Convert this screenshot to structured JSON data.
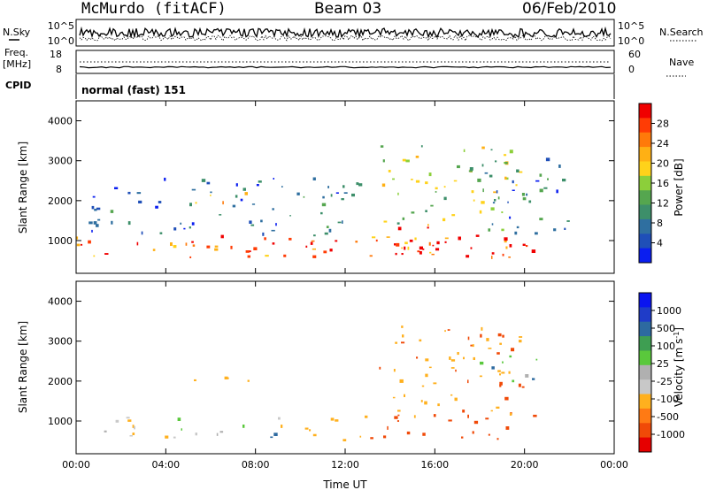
{
  "header": {
    "title": "McMurdo (fitACF)",
    "beam": "Beam 03",
    "date": "06/Feb/2010"
  },
  "status_panels": {
    "nsky_label": "N.Sky",
    "nsearch_label": "N.Search",
    "noise_ticks": [
      "10^5",
      "10^0"
    ],
    "freq_label_1": "Freq.",
    "freq_label_2": "[MHz]",
    "freq_ticks": [
      "18",
      "8"
    ],
    "nave_label": "Nave",
    "nave_ticks": [
      "60",
      "0"
    ],
    "cpid_label": "CPID",
    "cpid_value": "normal (fast) 151"
  },
  "colors": {
    "power_scale": [
      "#0a1ef0",
      "#1f4fb8",
      "#2f6fa0",
      "#3d8f6a",
      "#55a64f",
      "#8ccf3a",
      "#ffd21a",
      "#ffb014",
      "#ff7a0a",
      "#ff3c05",
      "#f00000"
    ],
    "velocity_scale": [
      "#e60000",
      "#f04a08",
      "#ff7a14",
      "#ffb01e",
      "#c8c8c8",
      "#b0b0b0",
      "#5ac83c",
      "#3e9e52",
      "#2d6aa0",
      "#1f3cc8",
      "#0a14f0"
    ]
  },
  "chart_data": [
    {
      "type": "heatmap",
      "panel": "power",
      "ylabel": "Slant Range [km]",
      "xlim": [
        "00:00",
        "24:00"
      ],
      "ylim": [
        180,
        4500
      ],
      "yticks": [
        "1000",
        "2000",
        "3000",
        "4000"
      ],
      "xticks": [
        "00:00",
        "04:00",
        "08:00",
        "12:00",
        "16:00",
        "20:00",
        "00:00"
      ],
      "colorbar": {
        "label": "Power [dB]",
        "ticks": [
          "28",
          "24",
          "20",
          "16",
          "12",
          "8",
          "4"
        ],
        "range": [
          0,
          30
        ]
      },
      "regions": [
        {
          "t0": 0.0,
          "t1": 20.7,
          "r0": 550,
          "r1": 1150,
          "value": 24,
          "description": "main ionospheric scatter band"
        },
        {
          "t0": 5.0,
          "t1": 20.5,
          "r0": 600,
          "r1": 1000,
          "value": 28
        },
        {
          "t0": 13.3,
          "t1": 15.8,
          "r0": 650,
          "r1": 1450,
          "value": 26
        },
        {
          "t0": 13.5,
          "t1": 20.0,
          "r0": 1100,
          "r1": 3400,
          "value": 16
        },
        {
          "t0": 5.0,
          "t1": 8.5,
          "r0": 1950,
          "r1": 2250,
          "value": 18
        },
        {
          "t0": 18.0,
          "t1": 22.0,
          "r0": 1200,
          "r1": 3200,
          "value": 8
        },
        {
          "t0": 0.3,
          "t1": 13.0,
          "r0": 1150,
          "r1": 2600,
          "value": 6
        }
      ]
    },
    {
      "type": "heatmap",
      "panel": "velocity",
      "ylabel": "Slant Range [km]",
      "xlabel": "Time UT",
      "xlim": [
        "00:00",
        "24:00"
      ],
      "ylim": [
        180,
        4500
      ],
      "yticks": [
        "1000",
        "2000",
        "3000",
        "4000"
      ],
      "xticks": [
        "00:00",
        "04:00",
        "08:00",
        "12:00",
        "16:00",
        "20:00",
        "00:00"
      ],
      "colorbar": {
        "label": "Velocity [m s^-1]",
        "ticks": [
          "1000",
          "500",
          "100",
          "25",
          "-25",
          "-100",
          "-500",
          "-1000"
        ]
      },
      "regions": [
        {
          "t0": 0.0,
          "t1": 4.5,
          "r0": 550,
          "r1": 1150,
          "value": -100
        },
        {
          "t0": 4.5,
          "t1": 9.0,
          "r0": 600,
          "r1": 1100,
          "value": 25
        },
        {
          "t0": 9.0,
          "t1": 13.0,
          "r0": 550,
          "r1": 1150,
          "value": -300
        },
        {
          "t0": 13.0,
          "t1": 20.5,
          "r0": 550,
          "r1": 1300,
          "value": -600
        },
        {
          "t0": 13.5,
          "t1": 20.0,
          "r0": 1100,
          "r1": 3400,
          "value": -500
        },
        {
          "t0": 18.0,
          "t1": 21.0,
          "r0": 2000,
          "r1": 2800,
          "value": 0
        },
        {
          "t0": 5.0,
          "t1": 8.5,
          "r0": 1950,
          "r1": 2250,
          "value": -400
        }
      ]
    }
  ]
}
